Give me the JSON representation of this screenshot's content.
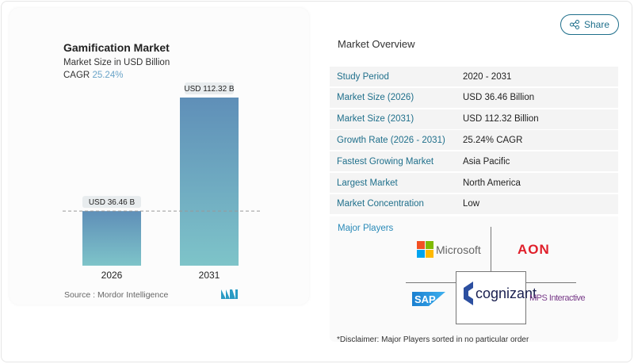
{
  "share": {
    "label": "Share",
    "icon": "share-icon"
  },
  "chart_data": {
    "type": "bar",
    "title": "Gamification Market",
    "subtitle": "Market Size in USD Billion",
    "cagr_label": "CAGR",
    "cagr_value": "25.24%",
    "categories": [
      "2026",
      "2031"
    ],
    "values": [
      36.46,
      112.32
    ],
    "data_labels": [
      "USD 36.46 B",
      "USD 112.32 B"
    ],
    "source": "Source :  Mordor Intelligence",
    "colors": {
      "bar_top": "#5f8fb8",
      "bar_bottom": "#7ec4c9",
      "cagr": "#6aa4c8"
    }
  },
  "overview": {
    "title": "Market Overview",
    "rows": [
      {
        "k": "Study Period",
        "v": "2020 - 2031"
      },
      {
        "k": "Market Size (2026)",
        "v": "USD 36.46 Billion"
      },
      {
        "k": "Market Size (2031)",
        "v": "USD 112.32 Billion"
      },
      {
        "k": "Growth Rate (2026 - 2031)",
        "v": "25.24% CAGR"
      },
      {
        "k": "Fastest Growing Market",
        "v": "Asia Pacific"
      },
      {
        "k": "Largest Market",
        "v": "North America"
      },
      {
        "k": "Market Concentration",
        "v": "Low"
      }
    ]
  },
  "players": {
    "title": "Major Players",
    "names": [
      "Microsoft",
      "AON",
      "SAP",
      "cognizant",
      "MPS Interactive"
    ],
    "disclaimer": "*Disclaimer: Major Players sorted in no particular order"
  }
}
